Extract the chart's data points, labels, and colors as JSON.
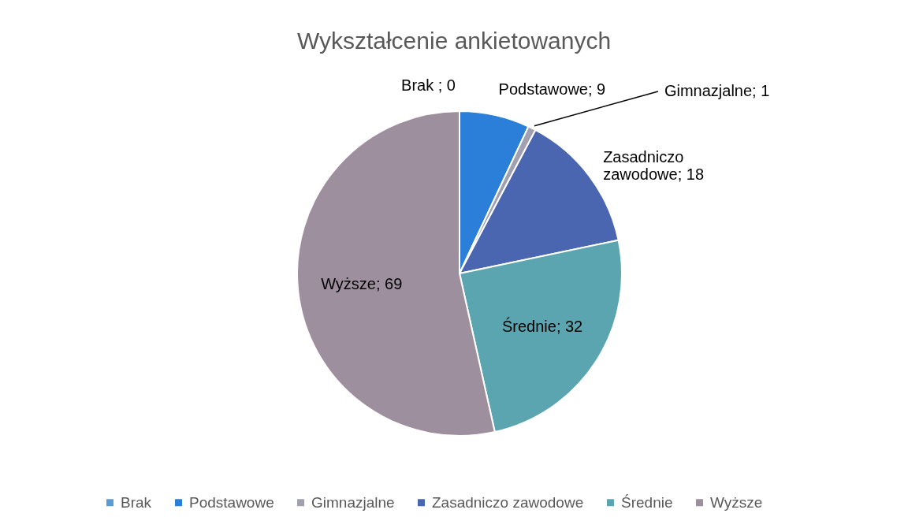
{
  "chart_data": {
    "type": "pie",
    "title": "Wykształcenie ankietowanych",
    "categories": [
      "Brak",
      "Podstawowe",
      "Gimnazjalne",
      "Zasadniczo zawodowe",
      "Średnie",
      "Wyższe"
    ],
    "values": [
      0,
      9,
      1,
      18,
      32,
      69
    ],
    "colors": [
      "#5b9bd5",
      "#2b7fd8",
      "#a0a0b0",
      "#4a66b0",
      "#5ba5b0",
      "#9e8f9f"
    ],
    "value_labels": [
      "Brak ; 0",
      "Podstawowe; 9",
      "Gimnazjalne; 1",
      "Zasadniczo zawodowe; 18",
      "Średnie; 32",
      "Wyższe; 69"
    ],
    "legend": "bottom"
  }
}
